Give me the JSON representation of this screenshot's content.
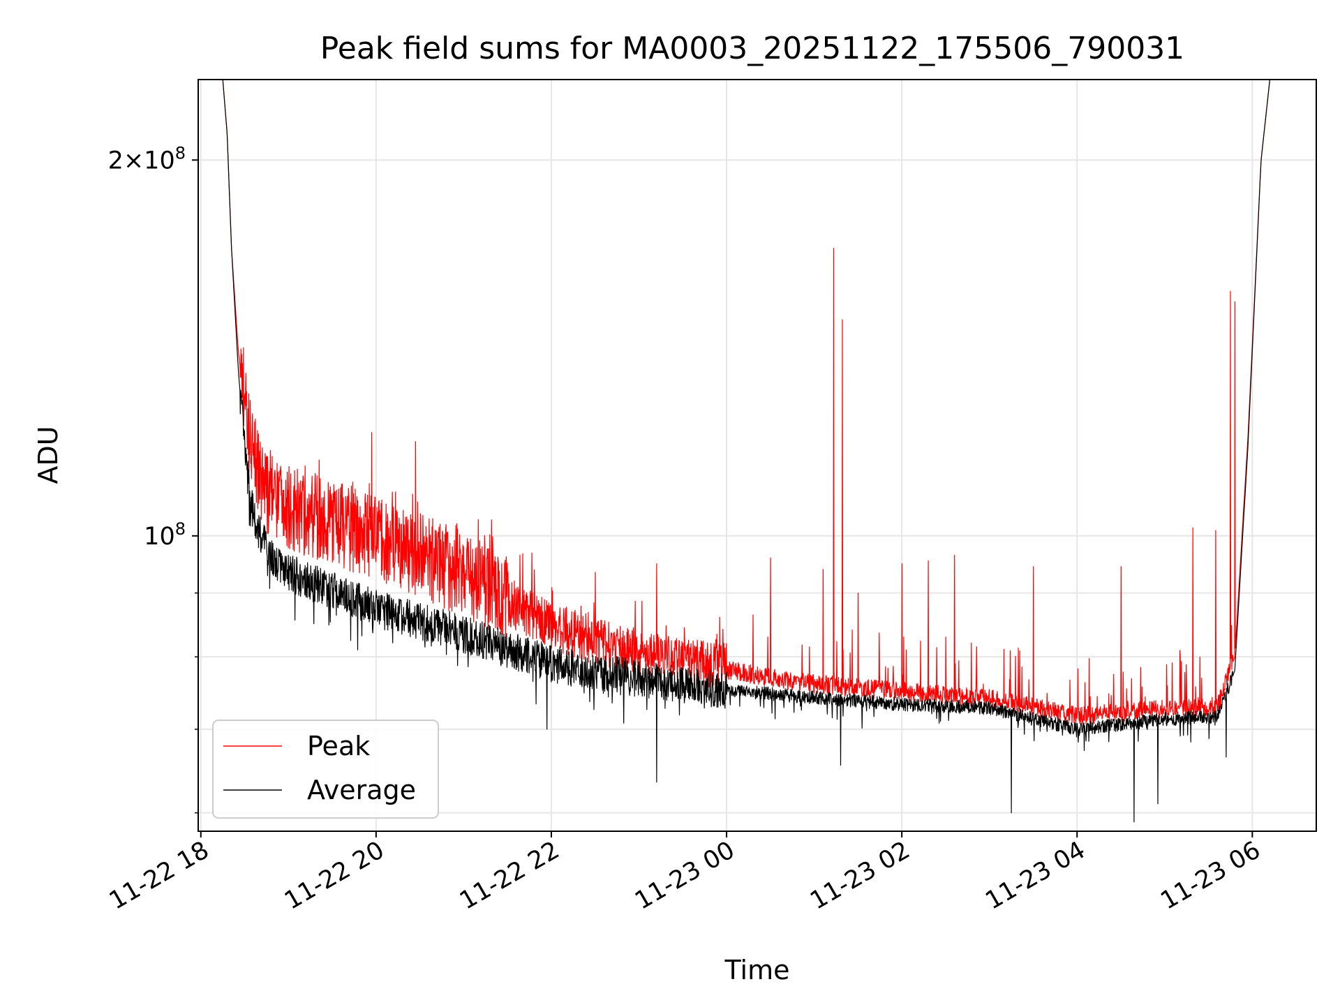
{
  "chart_data": {
    "type": "line",
    "title": "Peak field sums for MA0003_20251122_175506_790031",
    "xlabel": "Time",
    "ylabel": "ADU",
    "yscale": "log",
    "ylim": [
      58000000,
      232000000
    ],
    "xlim_hours": [
      -0.03,
      12.73
    ],
    "x_ticks": [
      {
        "label": "11-22 18",
        "hours": 0
      },
      {
        "label": "11-22 20",
        "hours": 2
      },
      {
        "label": "11-22 22",
        "hours": 4
      },
      {
        "label": "11-23 00",
        "hours": 6
      },
      {
        "label": "11-23 02",
        "hours": 8
      },
      {
        "label": "11-23 04",
        "hours": 10
      },
      {
        "label": "11-23 06",
        "hours": 12
      }
    ],
    "y_ticks": [
      {
        "base": "2",
        "times": "×",
        "mant": "10",
        "exp": "8",
        "value": 200000000
      },
      {
        "base": "",
        "times": "",
        "mant": "10",
        "exp": "8",
        "value": 100000000
      }
    ],
    "y_minor_ticks": [
      60000000,
      70000000,
      80000000,
      90000000
    ],
    "grid": true,
    "legend_position": "lower-left",
    "series": [
      {
        "name": "Peak",
        "color": "#ff0000",
        "baseline": [
          [
            0.25,
            232000000
          ],
          [
            0.3,
            210000000
          ],
          [
            0.35,
            170000000
          ],
          [
            0.43,
            140000000
          ],
          [
            0.55,
            120000000
          ],
          [
            0.7,
            108000000
          ],
          [
            1,
            104000000
          ],
          [
            2,
            98500000
          ],
          [
            3,
            92000000
          ],
          [
            4,
            84000000
          ],
          [
            5,
            79500000
          ],
          [
            6,
            77800000
          ],
          [
            7,
            75800000
          ],
          [
            8,
            74800000
          ],
          [
            9,
            73800000
          ],
          [
            10,
            71500000
          ],
          [
            11,
            72400000
          ],
          [
            11.6,
            72500000
          ],
          [
            11.8,
            80000000
          ],
          [
            11.95,
            120000000
          ],
          [
            12.1,
            200000000
          ],
          [
            12.2,
            232000000
          ]
        ],
        "spikes": [
          [
            1.95,
            121000000
          ],
          [
            2.45,
            119000000
          ],
          [
            3.32,
            103000000
          ],
          [
            4.5,
            93500000
          ],
          [
            5.2,
            95000000
          ],
          [
            6.5,
            96000000
          ],
          [
            7.1,
            94000000
          ],
          [
            7.22,
            170000000
          ],
          [
            7.32,
            149000000
          ],
          [
            7.5,
            90000000
          ],
          [
            8,
            95000000
          ],
          [
            8.3,
            95500000
          ],
          [
            8.6,
            96500000
          ],
          [
            9.5,
            94500000
          ],
          [
            10.5,
            94500000
          ],
          [
            11.32,
            101500000
          ],
          [
            11.58,
            101000000
          ],
          [
            11.75,
            157000000
          ],
          [
            11.8,
            154000000
          ]
        ]
      },
      {
        "name": "Average",
        "color": "#000000",
        "baseline": [
          [
            0.25,
            232000000
          ],
          [
            0.3,
            210000000
          ],
          [
            0.35,
            170000000
          ],
          [
            0.43,
            135000000
          ],
          [
            0.52,
            113000000
          ],
          [
            0.62,
            102000000
          ],
          [
            0.8,
            96500000
          ],
          [
            1,
            93500000
          ],
          [
            2,
            87500000
          ],
          [
            3,
            83500000
          ],
          [
            4,
            79000000
          ],
          [
            5,
            76800000
          ],
          [
            6,
            75300000
          ],
          [
            7,
            74200000
          ],
          [
            8,
            73300000
          ],
          [
            9,
            72800000
          ],
          [
            10,
            70000000
          ],
          [
            11,
            71300000
          ],
          [
            11.6,
            71700000
          ],
          [
            11.8,
            78000000
          ],
          [
            11.95,
            118000000
          ],
          [
            12.1,
            200000000
          ],
          [
            12.2,
            232000000
          ]
        ],
        "dips": [
          [
            3.95,
            70000000
          ],
          [
            5.2,
            63500000
          ],
          [
            7.3,
            65500000
          ],
          [
            9.25,
            60000000
          ],
          [
            10.65,
            59000000
          ],
          [
            10.92,
            61000000
          ],
          [
            11.7,
            66500000
          ]
        ]
      }
    ]
  }
}
